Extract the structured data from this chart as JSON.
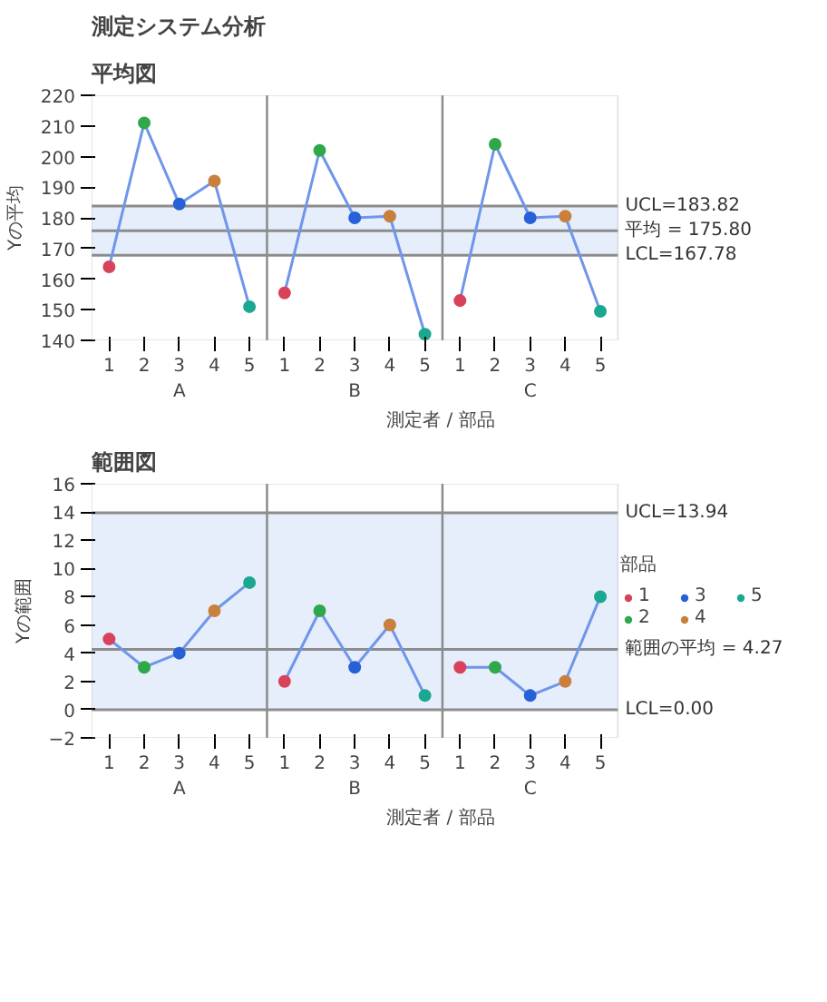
{
  "chart_data": [
    {
      "type": "line",
      "title": "測定システム分析",
      "subtitle": "平均図",
      "xlabel": "測定者 / 部品",
      "ylabel": "Yの平均",
      "categories": [
        "1",
        "2",
        "3",
        "4",
        "5",
        "1",
        "2",
        "3",
        "4",
        "5",
        "1",
        "2",
        "3",
        "4",
        "5"
      ],
      "annotations": [
        "A",
        "B",
        "C"
      ],
      "ylim": [
        140,
        220
      ],
      "yticks": [
        140,
        150,
        160,
        170,
        180,
        190,
        200,
        210,
        220
      ],
      "grid": false,
      "legend": false,
      "ref_lines": [
        {
          "axis": "y",
          "value": 183.82,
          "label": "UCL=183.82",
          "color": "#8c8c8c"
        },
        {
          "axis": "y",
          "value": 175.8,
          "label": "平均 = 175.80",
          "color": "#8c8c8c"
        },
        {
          "axis": "y",
          "value": 167.78,
          "label": "LCL=167.78",
          "color": "#8c8c8c"
        }
      ],
      "bands": [
        {
          "axis": "y",
          "from": 167.78,
          "to": 183.82,
          "color": "#e6edfb"
        }
      ],
      "series": [
        {
          "color": "#6f96ea",
          "values": [
            164,
            211,
            184.5,
            192,
            151,
            null,
            null,
            null,
            null,
            null,
            null,
            null,
            null,
            null,
            null
          ]
        },
        {
          "color": "#6f96ea",
          "values": [
            null,
            null,
            null,
            null,
            null,
            155.5,
            202,
            180,
            180.5,
            142,
            null,
            null,
            null,
            null,
            null
          ]
        },
        {
          "color": "#6f96ea",
          "values": [
            null,
            null,
            null,
            null,
            null,
            null,
            null,
            null,
            null,
            null,
            153,
            204,
            180,
            180.5,
            149.5
          ]
        },
        {
          "type": "scatter",
          "marker": "circle",
          "color": "#d9425b",
          "values": [
            164,
            null,
            null,
            null,
            null,
            155.5,
            null,
            null,
            null,
            null,
            153,
            null,
            null,
            null,
            null
          ]
        },
        {
          "type": "scatter",
          "marker": "circle",
          "color": "#2ea84a",
          "values": [
            null,
            211,
            null,
            null,
            null,
            null,
            202,
            null,
            null,
            null,
            null,
            204,
            null,
            null,
            null
          ]
        },
        {
          "type": "scatter",
          "marker": "circle",
          "color": "#2860d8",
          "values": [
            null,
            null,
            184.5,
            null,
            null,
            null,
            null,
            180,
            null,
            null,
            null,
            null,
            180,
            null,
            null
          ]
        },
        {
          "type": "scatter",
          "marker": "circle",
          "color": "#c8803c",
          "values": [
            null,
            null,
            null,
            192,
            null,
            null,
            null,
            null,
            180.5,
            null,
            null,
            null,
            null,
            180.5,
            null
          ]
        },
        {
          "type": "scatter",
          "marker": "circle",
          "color": "#1aa891",
          "values": [
            null,
            null,
            null,
            null,
            151,
            null,
            null,
            null,
            null,
            142,
            null,
            null,
            null,
            null,
            149.5
          ]
        }
      ]
    },
    {
      "type": "line",
      "title": "範囲図",
      "xlabel": "測定者 / 部品",
      "ylabel": "Yの範囲",
      "legend_title": "部品",
      "categories": [
        "1",
        "2",
        "3",
        "4",
        "5",
        "1",
        "2",
        "3",
        "4",
        "5",
        "1",
        "2",
        "3",
        "4",
        "5"
      ],
      "annotations": [
        "A",
        "B",
        "C"
      ],
      "ylim": [
        -2,
        16
      ],
      "yticks": [
        -2,
        0,
        2,
        4,
        6,
        8,
        10,
        12,
        14,
        16
      ],
      "grid": false,
      "legend": "right",
      "ref_lines": [
        {
          "axis": "y",
          "value": 13.94,
          "label": "UCL=13.94",
          "color": "#8c8c8c"
        },
        {
          "axis": "y",
          "value": 4.27,
          "label": "範囲の平均 = 4.27",
          "color": "#8c8c8c"
        },
        {
          "axis": "y",
          "value": 0,
          "label": "LCL=0.00",
          "color": "#8c8c8c"
        }
      ],
      "bands": [
        {
          "axis": "y",
          "from": 0,
          "to": 13.94,
          "color": "#e6edfb"
        }
      ],
      "series": [
        {
          "color": "#6f96ea",
          "values": [
            5,
            3,
            4,
            7,
            9,
            null,
            null,
            null,
            null,
            null,
            null,
            null,
            null,
            null,
            null
          ]
        },
        {
          "color": "#6f96ea",
          "values": [
            null,
            null,
            null,
            null,
            null,
            2,
            7,
            3,
            6,
            1,
            null,
            null,
            null,
            null,
            null
          ]
        },
        {
          "color": "#6f96ea",
          "values": [
            null,
            null,
            null,
            null,
            null,
            null,
            null,
            null,
            null,
            null,
            3,
            3,
            1,
            2,
            8
          ]
        },
        {
          "type": "scatter",
          "marker": "circle",
          "name": "1",
          "color": "#d9425b",
          "values": [
            5,
            null,
            null,
            null,
            null,
            2,
            null,
            null,
            null,
            null,
            3,
            null,
            null,
            null,
            null
          ]
        },
        {
          "type": "scatter",
          "marker": "circle",
          "name": "2",
          "color": "#2ea84a",
          "values": [
            null,
            3,
            null,
            null,
            null,
            null,
            7,
            null,
            null,
            null,
            null,
            3,
            null,
            null,
            null
          ]
        },
        {
          "type": "scatter",
          "marker": "circle",
          "name": "3",
          "color": "#2860d8",
          "values": [
            null,
            null,
            4,
            null,
            null,
            null,
            null,
            3,
            null,
            null,
            null,
            null,
            1,
            null,
            null
          ]
        },
        {
          "type": "scatter",
          "marker": "circle",
          "name": "4",
          "color": "#c8803c",
          "values": [
            null,
            null,
            null,
            7,
            null,
            null,
            null,
            null,
            6,
            null,
            null,
            null,
            null,
            2,
            null
          ]
        },
        {
          "type": "scatter",
          "marker": "circle",
          "name": "5",
          "color": "#1aa891",
          "values": [
            null,
            null,
            null,
            null,
            9,
            null,
            null,
            null,
            null,
            1,
            null,
            null,
            null,
            null,
            8
          ]
        }
      ]
    }
  ]
}
